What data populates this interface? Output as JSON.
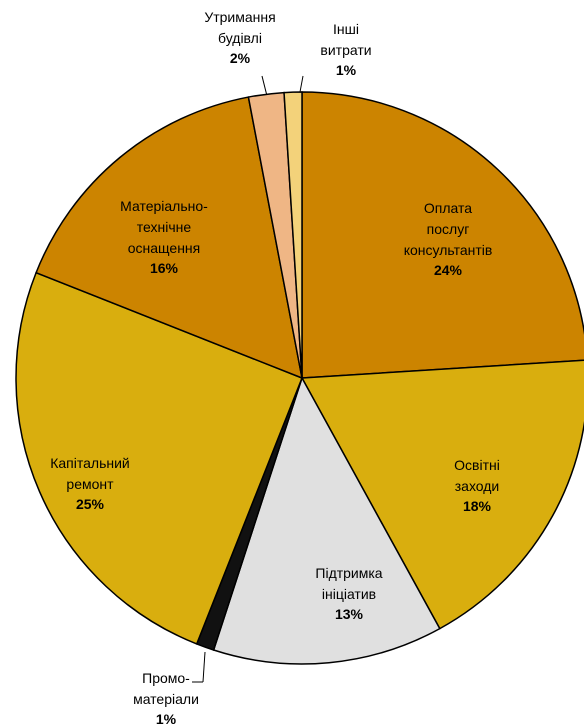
{
  "chart_data": {
    "type": "pie",
    "categories": [
      "Оплата\nпослуг\nконсультантів",
      "Освітні\nзаходи",
      "Підтримка\nініціатив",
      "Промо-\nматеріали",
      "Капітальний\nремонт",
      "Матеріально-\nтехнічне\nоснащення",
      "Утримання\nбудівлі",
      "Інші\nвитрати"
    ],
    "values": [
      24,
      18,
      13,
      1,
      25,
      16,
      2,
      1
    ],
    "value_labels": [
      "24%",
      "18%",
      "13%",
      "1%",
      "25%",
      "16%",
      "2%",
      "1%"
    ],
    "colors": [
      "#cc8400",
      "#d9ae0e",
      "#e0e0e0",
      "#111111",
      "#d9ae0e",
      "#cc8400",
      "#efb685",
      "#f3d27a"
    ]
  }
}
